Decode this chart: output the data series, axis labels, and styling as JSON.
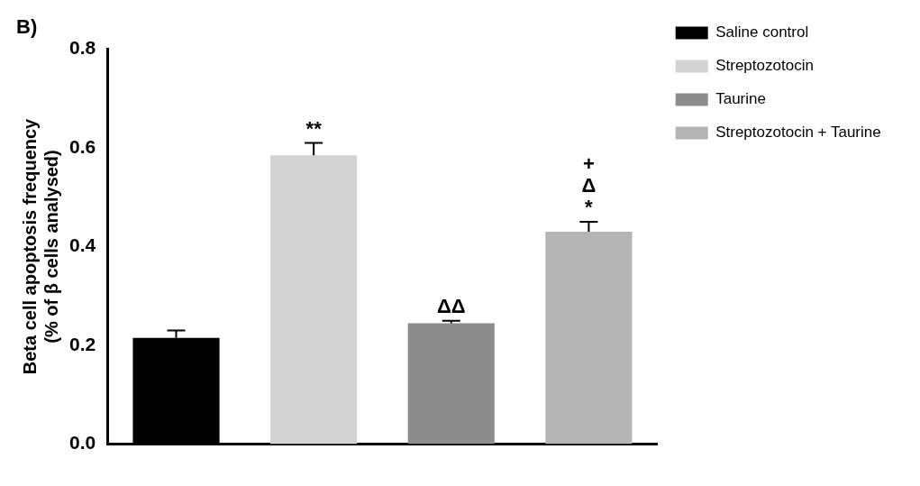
{
  "chart_data": {
    "type": "bar",
    "title": "B)",
    "ylabel": "Beta cell apoptosis frequency\n(% of β cells analysed)",
    "categories": [
      null,
      null,
      null,
      null
    ],
    "series": [
      {
        "name": "Saline control",
        "color": "#000000",
        "values": [
          0.215,
          null,
          null,
          null
        ],
        "errors": [
          0.015,
          null,
          null,
          null
        ]
      },
      {
        "name": "Streptozotocin",
        "color": "#d3d3d3",
        "values": [
          null,
          0.585,
          null,
          null
        ],
        "errors": [
          null,
          0.025,
          null,
          null
        ],
        "value_labels": [
          null,
          "**",
          null,
          null
        ]
      },
      {
        "name": "Taurine",
        "color": "#8c8c8c",
        "values": [
          null,
          null,
          0.245,
          null
        ],
        "errors": [
          null,
          null,
          0.005,
          null
        ],
        "value_labels": [
          null,
          null,
          "ΔΔ",
          null
        ]
      },
      {
        "name": "Streptozotocin + Taurine",
        "color": "#b4b4b4",
        "values": [
          null,
          null,
          null,
          0.43
        ],
        "errors": [
          null,
          null,
          null,
          0.02
        ],
        "value_labels": [
          null,
          null,
          null,
          "+\nΔ\n*"
        ]
      }
    ],
    "ylim": [
      0,
      0.8
    ],
    "yticks": [
      {
        "value": 0,
        "label": "0.0"
      },
      {
        "value": 0.2,
        "label": "0.2"
      },
      {
        "value": 0.4,
        "label": "0.4"
      },
      {
        "value": 0.6,
        "label": "0.6"
      },
      {
        "value": 0.8,
        "label": "0.8"
      }
    ],
    "grid": false,
    "legend": "right"
  }
}
